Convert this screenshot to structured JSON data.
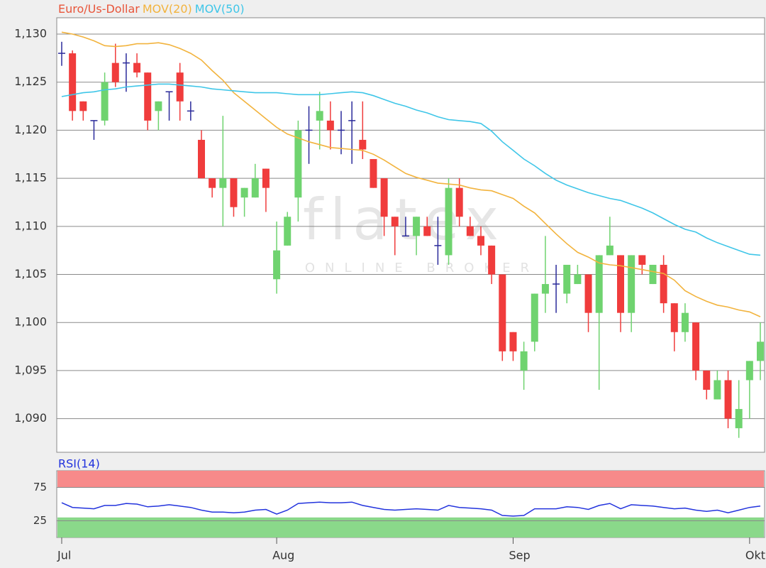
{
  "chart_data": [
    {
      "type": "candlestick",
      "watermark": {
        "title": "flatex",
        "subtitle": "ONLINE BROKER"
      },
      "categories": [
        "Jul",
        null,
        null,
        null,
        null,
        null,
        null,
        null,
        null,
        null,
        null,
        null,
        null,
        null,
        null,
        null,
        null,
        null,
        null,
        null,
        "Aug",
        null,
        null,
        null,
        null,
        null,
        null,
        null,
        null,
        null,
        null,
        null,
        null,
        null,
        null,
        null,
        null,
        null,
        null,
        null,
        null,
        null,
        "Sep",
        null,
        null,
        null,
        null,
        null,
        null,
        null,
        null,
        null,
        null,
        null,
        null,
        null,
        null,
        null,
        null,
        null,
        null,
        null,
        null,
        null,
        "Okt",
        null
      ],
      "candles": {
        "name": "Euro/Us-Dollar",
        "color": "#e8553a",
        "up_color": "#6fd36f",
        "down_color": "#f03c3c",
        "doji_color": "#2a2a9a",
        "open": [
          1.128,
          1.128,
          1.123,
          1.121,
          1.121,
          1.127,
          1.127,
          1.127,
          1.126,
          1.122,
          1.124,
          1.126,
          1.122,
          1.119,
          1.115,
          1.114,
          1.115,
          1.113,
          1.113,
          1.116,
          1.1045,
          1.108,
          1.113,
          1.12,
          1.121,
          1.121,
          1.12,
          1.121,
          1.119,
          1.117,
          1.115,
          1.111,
          1.109,
          1.109,
          1.11,
          1.108,
          1.107,
          1.114,
          1.11,
          1.109,
          1.108,
          1.105,
          1.099,
          1.095,
          1.098,
          1.103,
          1.104,
          1.103,
          1.104,
          1.105,
          1.101,
          1.107,
          1.107,
          1.101,
          1.107,
          1.104,
          1.106,
          1.102,
          1.099,
          1.1,
          1.095,
          1.092,
          1.094,
          1.089,
          1.094,
          1.096
        ],
        "high": [
          1.1292,
          1.1283,
          1.123,
          1.121,
          1.126,
          1.129,
          1.128,
          1.128,
          1.126,
          1.123,
          1.124,
          1.127,
          1.123,
          1.12,
          1.115,
          1.1215,
          1.115,
          1.114,
          1.1165,
          1.116,
          1.1105,
          1.1115,
          1.121,
          1.1225,
          1.124,
          1.123,
          1.122,
          1.123,
          1.123,
          1.117,
          1.115,
          1.111,
          1.111,
          1.111,
          1.111,
          1.111,
          1.115,
          1.115,
          1.111,
          1.11,
          1.108,
          1.105,
          1.099,
          1.098,
          1.103,
          1.109,
          1.106,
          1.106,
          1.106,
          1.105,
          1.107,
          1.111,
          1.107,
          1.107,
          1.107,
          1.106,
          1.107,
          1.102,
          1.102,
          1.1,
          1.095,
          1.095,
          1.095,
          1.094,
          1.096,
          1.1
        ],
        "low": [
          1.1267,
          1.121,
          1.121,
          1.119,
          1.1205,
          1.1245,
          1.124,
          1.1255,
          1.12,
          1.12,
          1.121,
          1.121,
          1.121,
          1.115,
          1.113,
          1.11,
          1.111,
          1.111,
          1.113,
          1.1115,
          1.103,
          1.108,
          1.1105,
          1.1165,
          1.118,
          1.118,
          1.1175,
          1.1165,
          1.117,
          1.114,
          1.109,
          1.107,
          1.109,
          1.107,
          1.109,
          1.106,
          1.106,
          1.11,
          1.109,
          1.107,
          1.104,
          1.096,
          1.096,
          1.093,
          1.097,
          1.101,
          1.101,
          1.102,
          1.104,
          1.099,
          1.093,
          1.107,
          1.099,
          1.099,
          1.105,
          1.104,
          1.101,
          1.097,
          1.098,
          1.094,
          1.092,
          1.092,
          1.089,
          1.088,
          1.09,
          1.094
        ],
        "close": [
          1.128,
          1.122,
          1.122,
          1.121,
          1.125,
          1.125,
          1.127,
          1.126,
          1.121,
          1.123,
          1.124,
          1.123,
          1.122,
          1.115,
          1.114,
          1.115,
          1.112,
          1.114,
          1.115,
          1.114,
          1.1075,
          1.111,
          1.12,
          1.12,
          1.122,
          1.12,
          1.12,
          1.121,
          1.118,
          1.114,
          1.111,
          1.11,
          1.109,
          1.111,
          1.109,
          1.108,
          1.114,
          1.111,
          1.109,
          1.108,
          1.105,
          1.097,
          1.097,
          1.097,
          1.103,
          1.104,
          1.104,
          1.106,
          1.105,
          1.101,
          1.107,
          1.108,
          1.101,
          1.107,
          1.106,
          1.106,
          1.102,
          1.099,
          1.101,
          1.095,
          1.093,
          1.094,
          1.09,
          1.091,
          1.096,
          1.098
        ]
      },
      "series": [
        {
          "name": "MOV(20)",
          "color": "#f2b33d",
          "values": [
            1.1302,
            1.13,
            1.1297,
            1.1293,
            1.1288,
            1.1287,
            1.1288,
            1.129,
            1.129,
            1.1291,
            1.1289,
            1.1285,
            1.128,
            1.1273,
            1.1262,
            1.1252,
            1.1239,
            1.123,
            1.1221,
            1.1212,
            1.1203,
            1.1196,
            1.1192,
            1.1188,
            1.1185,
            1.1182,
            1.1181,
            1.118,
            1.1179,
            1.1175,
            1.1169,
            1.1162,
            1.1155,
            1.1151,
            1.1148,
            1.1145,
            1.1144,
            1.1143,
            1.114,
            1.1138,
            1.1137,
            1.1133,
            1.1129,
            1.1121,
            1.1114,
            1.1103,
            1.1092,
            1.1082,
            1.1073,
            1.1068,
            1.1062,
            1.106,
            1.1059,
            1.1057,
            1.1055,
            1.1053,
            1.1051,
            1.1044,
            1.1033,
            1.1027,
            1.1022,
            1.1018,
            1.1016,
            1.1013,
            1.1011,
            1.1006
          ]
        },
        {
          "name": "MOV(50)",
          "color": "#3fc6e8",
          "values": [
            1.1235,
            1.1237,
            1.1239,
            1.124,
            1.1242,
            1.1243,
            1.1245,
            1.1246,
            1.1247,
            1.1248,
            1.1248,
            1.1247,
            1.1246,
            1.1245,
            1.1243,
            1.1242,
            1.1241,
            1.124,
            1.1239,
            1.1239,
            1.1239,
            1.1238,
            1.1237,
            1.1237,
            1.1237,
            1.1238,
            1.1239,
            1.124,
            1.1239,
            1.1236,
            1.1232,
            1.1228,
            1.1225,
            1.1221,
            1.1218,
            1.1214,
            1.1211,
            1.121,
            1.1209,
            1.1207,
            1.1199,
            1.1188,
            1.1179,
            1.117,
            1.1163,
            1.1155,
            1.1148,
            1.1143,
            1.1139,
            1.1135,
            1.1132,
            1.1129,
            1.1127,
            1.1123,
            1.1119,
            1.1114,
            1.1108,
            1.1102,
            1.1097,
            1.1094,
            1.1088,
            1.1083,
            1.1079,
            1.1075,
            1.1071,
            1.107
          ]
        }
      ],
      "ylim": [
        1.0865,
        1.1317
      ],
      "yticks": [
        {
          "value": 1.09,
          "label": "1,090"
        },
        {
          "value": 1.095,
          "label": "1,095"
        },
        {
          "value": 1.1,
          "label": "1,100"
        },
        {
          "value": 1.105,
          "label": "1,105"
        },
        {
          "value": 1.11,
          "label": "1,110"
        },
        {
          "value": 1.115,
          "label": "1,115"
        },
        {
          "value": 1.12,
          "label": "1,120"
        },
        {
          "value": 1.125,
          "label": "1,125"
        },
        {
          "value": 1.13,
          "label": "1,130"
        }
      ],
      "grid": true
    },
    {
      "type": "line",
      "series": [
        {
          "name": "RSI(14)",
          "color": "#2233dd",
          "values": [
            52,
            45,
            44,
            43,
            48,
            48,
            51,
            50,
            46,
            47,
            49,
            47,
            45,
            41,
            38,
            38,
            37,
            38,
            41,
            42,
            35,
            41,
            51,
            52,
            53,
            52,
            52,
            53,
            48,
            45,
            42,
            41,
            42,
            43,
            42,
            41,
            48,
            45,
            44,
            43,
            41,
            33,
            32,
            33,
            43,
            43,
            43,
            46,
            45,
            42,
            48,
            51,
            43,
            49,
            48,
            47,
            45,
            43,
            44,
            41,
            39,
            41,
            37,
            41,
            45,
            47
          ]
        }
      ],
      "bands": [
        {
          "range": [
            75,
            100
          ],
          "color": "#f78a8a"
        },
        {
          "range": [
            0,
            30
          ],
          "color": "#8ad88a"
        }
      ],
      "ylim": [
        0,
        100
      ],
      "yticks": [
        25,
        75
      ],
      "grid": true
    }
  ]
}
